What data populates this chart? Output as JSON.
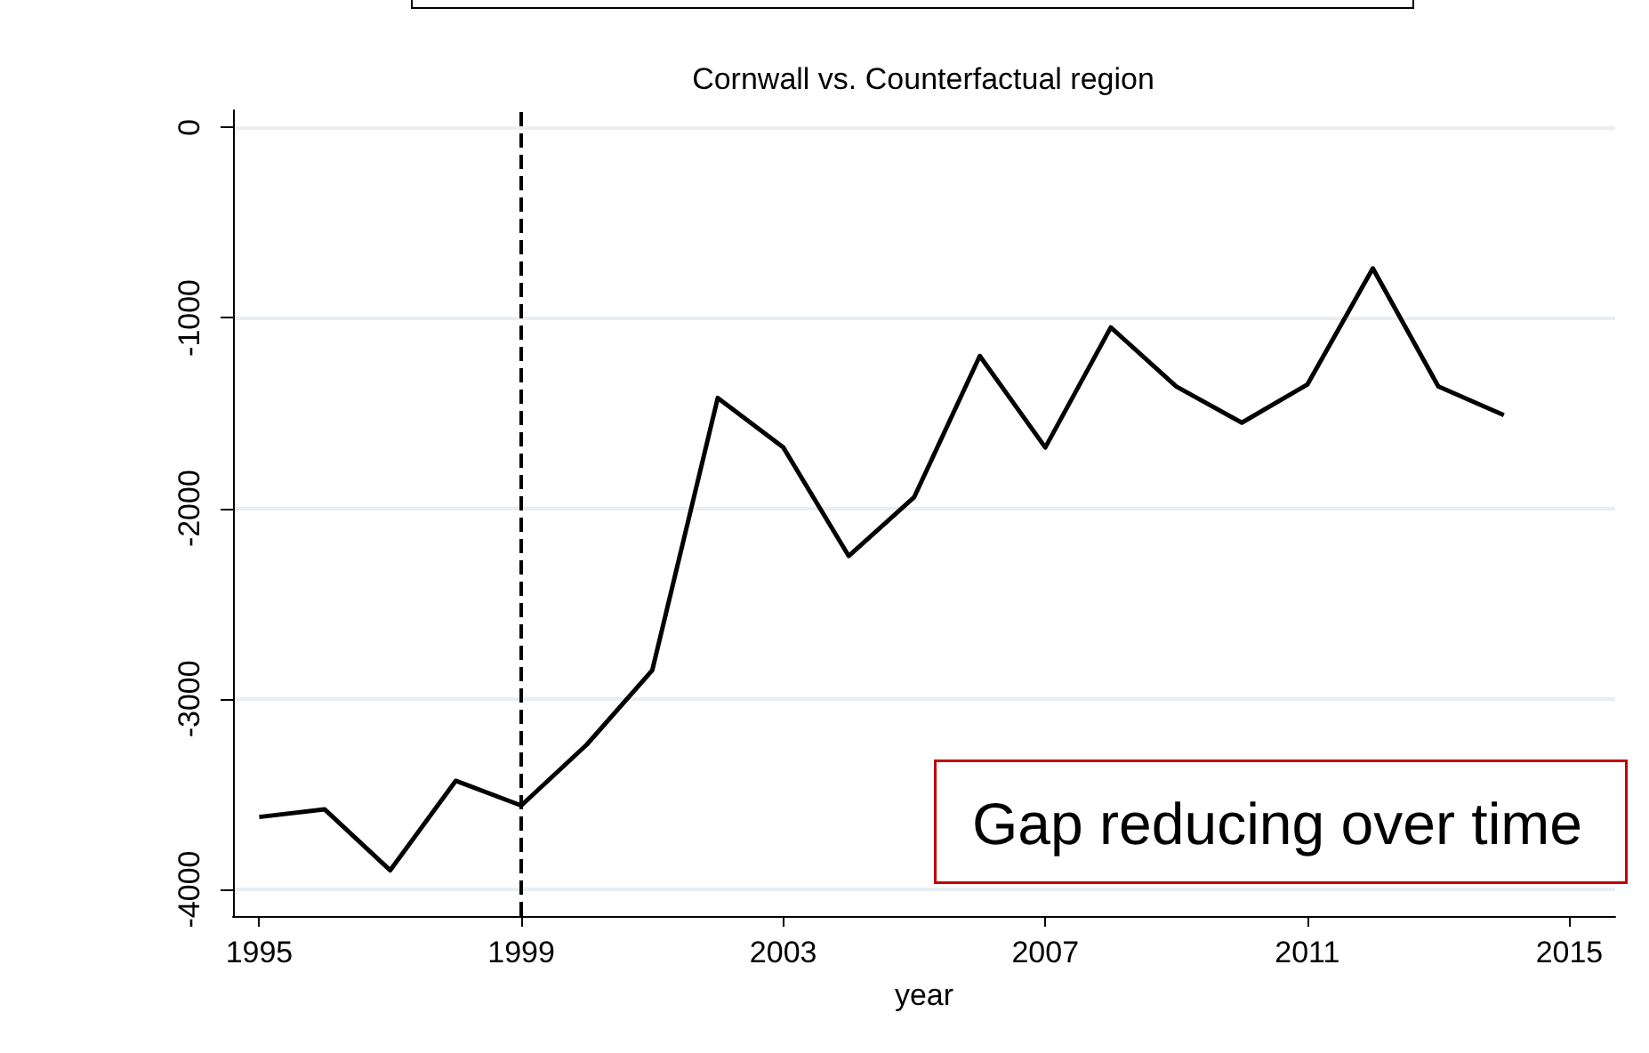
{
  "chart_data": {
    "type": "line",
    "title": "Cornwall vs. Counterfactual region",
    "xlabel": "year",
    "x": [
      1995,
      1996,
      1997,
      1998,
      1999,
      2000,
      2001,
      2002,
      2003,
      2004,
      2005,
      2006,
      2007,
      2008,
      2009,
      2010,
      2011,
      2012,
      2013,
      2014
    ],
    "series": [
      {
        "color": "#000000",
        "values": [
          -3620,
          -3580,
          -3900,
          -3430,
          -3560,
          -3240,
          -2850,
          -1420,
          -1680,
          -2250,
          -1940,
          -1200,
          -1680,
          -1050,
          -1360,
          -1550,
          -1350,
          -740,
          -1360,
          -1510
        ]
      }
    ],
    "xlim": [
      1994.6,
      2015.7
    ],
    "xticks": [
      1995,
      1999,
      2003,
      2007,
      2011,
      2015
    ],
    "ylim": [
      -4140,
      90
    ],
    "yticks": [
      -4000,
      -3000,
      -2000,
      -1000,
      0
    ],
    "grid": "y",
    "marker": "none",
    "line_style": "solid",
    "ref_lines": [
      {
        "axis": "x",
        "value": 1999,
        "color": "#000000",
        "line_style": "dashed"
      }
    ],
    "annotations": [
      "Gap reducing over time"
    ]
  }
}
